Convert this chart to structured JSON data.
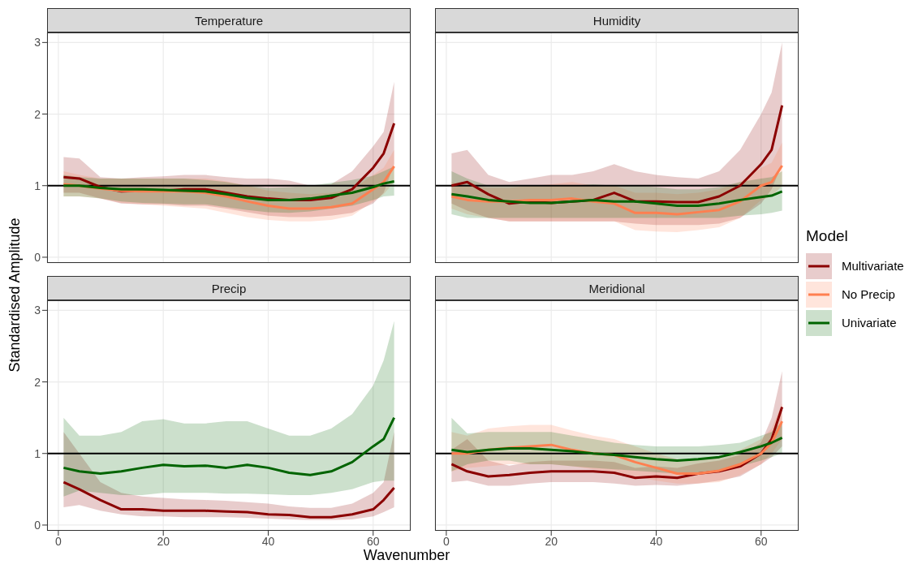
{
  "chart_data": [
    {
      "type": "line",
      "title": "Temperature",
      "ylabel": "Standardised Amplitude",
      "legend_title": "Model",
      "legend": "right",
      "grid": true,
      "tick_labels": "y",
      "xlim": [
        -2.15,
        67.15
      ],
      "xticks": [
        0,
        20,
        40,
        60
      ],
      "ylim": [
        -0.08,
        3.14
      ],
      "yticks": [
        0,
        1,
        2,
        3
      ],
      "ref_lines": [
        {
          "axis": "y",
          "value": 1,
          "color": "#000000"
        }
      ],
      "x": [
        1,
        4,
        8,
        12,
        16,
        20,
        24,
        28,
        32,
        36,
        40,
        44,
        48,
        52,
        56,
        60,
        62,
        64
      ],
      "series": [
        {
          "name": "Multivariate",
          "color": "#8b0000",
          "values": [
            1.12,
            1.1,
            0.98,
            0.92,
            0.93,
            0.93,
            0.95,
            0.95,
            0.9,
            0.85,
            0.82,
            0.8,
            0.8,
            0.83,
            0.95,
            1.25,
            1.45,
            1.87
          ],
          "lower": [
            0.9,
            0.9,
            0.82,
            0.75,
            0.74,
            0.74,
            0.72,
            0.72,
            0.68,
            0.63,
            0.58,
            0.56,
            0.56,
            0.58,
            0.62,
            0.75,
            0.9,
            1.3
          ],
          "upper": [
            1.4,
            1.38,
            1.12,
            1.1,
            1.12,
            1.13,
            1.15,
            1.15,
            1.12,
            1.1,
            1.1,
            1.07,
            1.0,
            1.02,
            1.2,
            1.55,
            1.75,
            2.45
          ]
        },
        {
          "name": "No Precip",
          "color": "#ff7f50",
          "values": [
            1.02,
            1.0,
            0.96,
            0.93,
            0.92,
            0.92,
            0.92,
            0.9,
            0.85,
            0.78,
            0.72,
            0.68,
            0.68,
            0.7,
            0.75,
            0.95,
            1.05,
            1.27
          ],
          "lower": [
            0.85,
            0.85,
            0.82,
            0.76,
            0.74,
            0.72,
            0.7,
            0.68,
            0.62,
            0.56,
            0.52,
            0.5,
            0.5,
            0.52,
            0.58,
            0.78,
            0.88,
            1.05
          ],
          "upper": [
            1.2,
            1.15,
            1.1,
            1.1,
            1.1,
            1.1,
            1.1,
            1.1,
            1.06,
            1.0,
            0.93,
            0.9,
            0.88,
            0.9,
            0.95,
            1.15,
            1.25,
            1.5
          ]
        },
        {
          "name": "Univariate",
          "color": "#006400",
          "values": [
            1.0,
            1.0,
            0.97,
            0.95,
            0.95,
            0.94,
            0.93,
            0.92,
            0.88,
            0.83,
            0.8,
            0.8,
            0.82,
            0.86,
            0.9,
            0.98,
            1.03,
            1.06
          ],
          "lower": [
            0.85,
            0.85,
            0.82,
            0.78,
            0.76,
            0.75,
            0.74,
            0.74,
            0.7,
            0.66,
            0.63,
            0.62,
            0.64,
            0.68,
            0.72,
            0.8,
            0.85,
            0.86
          ],
          "upper": [
            1.15,
            1.12,
            1.1,
            1.1,
            1.1,
            1.1,
            1.1,
            1.08,
            1.05,
            1.0,
            0.97,
            0.98,
            1.0,
            1.04,
            1.08,
            1.14,
            1.2,
            1.27
          ]
        }
      ]
    },
    {
      "type": "line",
      "title": "Humidity",
      "grid": true,
      "tick_labels": false,
      "xlim": [
        -2.15,
        67.15
      ],
      "xticks": [
        0,
        20,
        40,
        60
      ],
      "ylim": [
        -0.08,
        3.14
      ],
      "yticks": [
        0,
        1,
        2,
        3
      ],
      "ref_lines": [
        {
          "axis": "y",
          "value": 1,
          "color": "#000000"
        }
      ],
      "x": [
        1,
        4,
        8,
        12,
        16,
        20,
        24,
        28,
        32,
        36,
        40,
        44,
        48,
        52,
        56,
        60,
        62,
        64
      ],
      "series": [
        {
          "color": "#8b0000",
          "values": [
            1.0,
            1.05,
            0.88,
            0.75,
            0.78,
            0.76,
            0.78,
            0.8,
            0.9,
            0.78,
            0.78,
            0.77,
            0.77,
            0.85,
            1.0,
            1.3,
            1.5,
            2.12
          ],
          "lower": [
            0.75,
            0.65,
            0.55,
            0.5,
            0.5,
            0.5,
            0.5,
            0.5,
            0.5,
            0.47,
            0.45,
            0.45,
            0.45,
            0.47,
            0.55,
            0.75,
            0.95,
            1.3
          ],
          "upper": [
            1.45,
            1.5,
            1.15,
            1.05,
            1.1,
            1.15,
            1.15,
            1.2,
            1.3,
            1.2,
            1.15,
            1.12,
            1.1,
            1.2,
            1.5,
            2.0,
            2.3,
            3.0
          ]
        },
        {
          "color": "#ff7f50",
          "values": [
            0.85,
            0.8,
            0.78,
            0.78,
            0.8,
            0.8,
            0.82,
            0.78,
            0.75,
            0.62,
            0.62,
            0.6,
            0.63,
            0.66,
            0.78,
            1.0,
            1.05,
            1.28
          ],
          "lower": [
            0.68,
            0.6,
            0.55,
            0.5,
            0.5,
            0.5,
            0.5,
            0.5,
            0.5,
            0.38,
            0.36,
            0.35,
            0.38,
            0.42,
            0.55,
            0.8,
            0.85,
            1.0
          ],
          "upper": [
            1.05,
            1.0,
            0.97,
            0.97,
            1.0,
            1.02,
            1.05,
            1.0,
            1.0,
            0.9,
            0.9,
            0.88,
            0.9,
            0.95,
            1.05,
            1.25,
            1.32,
            1.6
          ]
        },
        {
          "color": "#006400",
          "values": [
            0.88,
            0.85,
            0.8,
            0.78,
            0.76,
            0.76,
            0.78,
            0.8,
            0.78,
            0.78,
            0.75,
            0.72,
            0.72,
            0.75,
            0.8,
            0.84,
            0.86,
            0.92
          ],
          "lower": [
            0.6,
            0.55,
            0.55,
            0.55,
            0.55,
            0.55,
            0.55,
            0.55,
            0.55,
            0.55,
            0.55,
            0.55,
            0.55,
            0.55,
            0.58,
            0.6,
            0.62,
            0.65
          ],
          "upper": [
            1.2,
            1.1,
            1.0,
            1.0,
            1.0,
            1.0,
            1.0,
            1.02,
            1.0,
            1.0,
            0.98,
            0.95,
            0.95,
            0.98,
            1.05,
            1.1,
            1.12,
            1.2
          ]
        }
      ]
    },
    {
      "type": "line",
      "title": "Precip",
      "xlabel": "Wavenumber",
      "grid": true,
      "xlim": [
        -2.15,
        67.15
      ],
      "xticks": [
        0,
        20,
        40,
        60
      ],
      "ylim": [
        -0.08,
        3.14
      ],
      "yticks": [
        0,
        1,
        2,
        3
      ],
      "ref_lines": [
        {
          "axis": "y",
          "value": 1,
          "color": "#000000"
        }
      ],
      "x": [
        1,
        4,
        8,
        12,
        16,
        20,
        24,
        28,
        32,
        36,
        40,
        44,
        48,
        52,
        56,
        60,
        62,
        64
      ],
      "series": [
        {
          "color": "#8b0000",
          "values": [
            0.6,
            0.5,
            0.35,
            0.22,
            0.22,
            0.2,
            0.2,
            0.2,
            0.19,
            0.18,
            0.15,
            0.14,
            0.11,
            0.11,
            0.15,
            0.22,
            0.35,
            0.52
          ],
          "lower": [
            0.25,
            0.28,
            0.2,
            0.15,
            0.12,
            0.12,
            0.11,
            0.11,
            0.11,
            0.1,
            0.09,
            0.08,
            0.07,
            0.07,
            0.08,
            0.12,
            0.18,
            0.25
          ],
          "upper": [
            1.3,
            1.0,
            0.6,
            0.45,
            0.4,
            0.38,
            0.36,
            0.35,
            0.34,
            0.32,
            0.3,
            0.26,
            0.24,
            0.24,
            0.3,
            0.45,
            0.6,
            1.3
          ]
        },
        {
          "color": "#006400",
          "values": [
            0.8,
            0.75,
            0.72,
            0.75,
            0.8,
            0.84,
            0.82,
            0.83,
            0.8,
            0.84,
            0.8,
            0.73,
            0.7,
            0.75,
            0.88,
            1.1,
            1.2,
            1.5
          ],
          "lower": [
            0.4,
            0.48,
            0.45,
            0.42,
            0.42,
            0.45,
            0.45,
            0.45,
            0.44,
            0.44,
            0.43,
            0.42,
            0.42,
            0.45,
            0.5,
            0.6,
            0.62,
            0.62
          ],
          "upper": [
            1.5,
            1.25,
            1.25,
            1.3,
            1.45,
            1.48,
            1.42,
            1.42,
            1.45,
            1.45,
            1.35,
            1.25,
            1.25,
            1.35,
            1.55,
            1.95,
            2.3,
            2.85
          ]
        }
      ]
    },
    {
      "type": "line",
      "title": "Meridional",
      "grid": true,
      "tick_labels": "x",
      "xlim": [
        -2.15,
        67.15
      ],
      "xticks": [
        0,
        20,
        40,
        60
      ],
      "ylim": [
        -0.08,
        3.14
      ],
      "yticks": [
        0,
        1,
        2,
        3
      ],
      "ref_lines": [
        {
          "axis": "y",
          "value": 1,
          "color": "#000000"
        }
      ],
      "x": [
        1,
        4,
        8,
        12,
        16,
        20,
        24,
        28,
        32,
        36,
        40,
        44,
        48,
        52,
        56,
        60,
        62,
        64
      ],
      "series": [
        {
          "color": "#8b0000",
          "values": [
            0.85,
            0.75,
            0.68,
            0.7,
            0.73,
            0.75,
            0.75,
            0.75,
            0.73,
            0.66,
            0.68,
            0.66,
            0.72,
            0.75,
            0.82,
            1.0,
            1.2,
            1.65
          ],
          "lower": [
            0.6,
            0.62,
            0.55,
            0.55,
            0.58,
            0.6,
            0.6,
            0.6,
            0.58,
            0.55,
            0.56,
            0.55,
            0.58,
            0.62,
            0.68,
            0.85,
            0.95,
            1.1
          ],
          "upper": [
            1.05,
            1.2,
            0.9,
            0.83,
            0.88,
            0.9,
            0.9,
            0.9,
            0.88,
            0.8,
            0.82,
            0.8,
            0.86,
            0.9,
            0.98,
            1.15,
            1.5,
            2.15
          ]
        },
        {
          "color": "#ff7f50",
          "values": [
            1.0,
            1.0,
            1.05,
            1.08,
            1.1,
            1.12,
            1.05,
            1.0,
            0.98,
            0.88,
            0.8,
            0.72,
            0.72,
            0.76,
            0.85,
            1.0,
            1.15,
            1.45
          ],
          "lower": [
            0.75,
            0.8,
            0.82,
            0.85,
            0.85,
            0.85,
            0.82,
            0.78,
            0.75,
            0.68,
            0.62,
            0.58,
            0.58,
            0.6,
            0.7,
            0.85,
            1.0,
            1.2
          ],
          "upper": [
            1.3,
            1.25,
            1.35,
            1.38,
            1.4,
            1.4,
            1.32,
            1.25,
            1.2,
            1.1,
            1.0,
            0.92,
            0.92,
            0.95,
            1.05,
            1.2,
            1.35,
            1.7
          ]
        },
        {
          "color": "#006400",
          "values": [
            1.05,
            1.02,
            1.05,
            1.07,
            1.07,
            1.05,
            1.03,
            1.0,
            0.98,
            0.95,
            0.92,
            0.9,
            0.92,
            0.95,
            1.02,
            1.1,
            1.15,
            1.22
          ],
          "lower": [
            0.75,
            0.85,
            0.9,
            0.9,
            0.85,
            0.85,
            0.82,
            0.8,
            0.78,
            0.76,
            0.74,
            0.72,
            0.72,
            0.75,
            0.82,
            0.9,
            0.95,
            1.0
          ],
          "upper": [
            1.5,
            1.28,
            1.3,
            1.3,
            1.3,
            1.3,
            1.25,
            1.2,
            1.15,
            1.12,
            1.1,
            1.1,
            1.1,
            1.12,
            1.15,
            1.25,
            1.3,
            1.45
          ]
        }
      ]
    }
  ]
}
